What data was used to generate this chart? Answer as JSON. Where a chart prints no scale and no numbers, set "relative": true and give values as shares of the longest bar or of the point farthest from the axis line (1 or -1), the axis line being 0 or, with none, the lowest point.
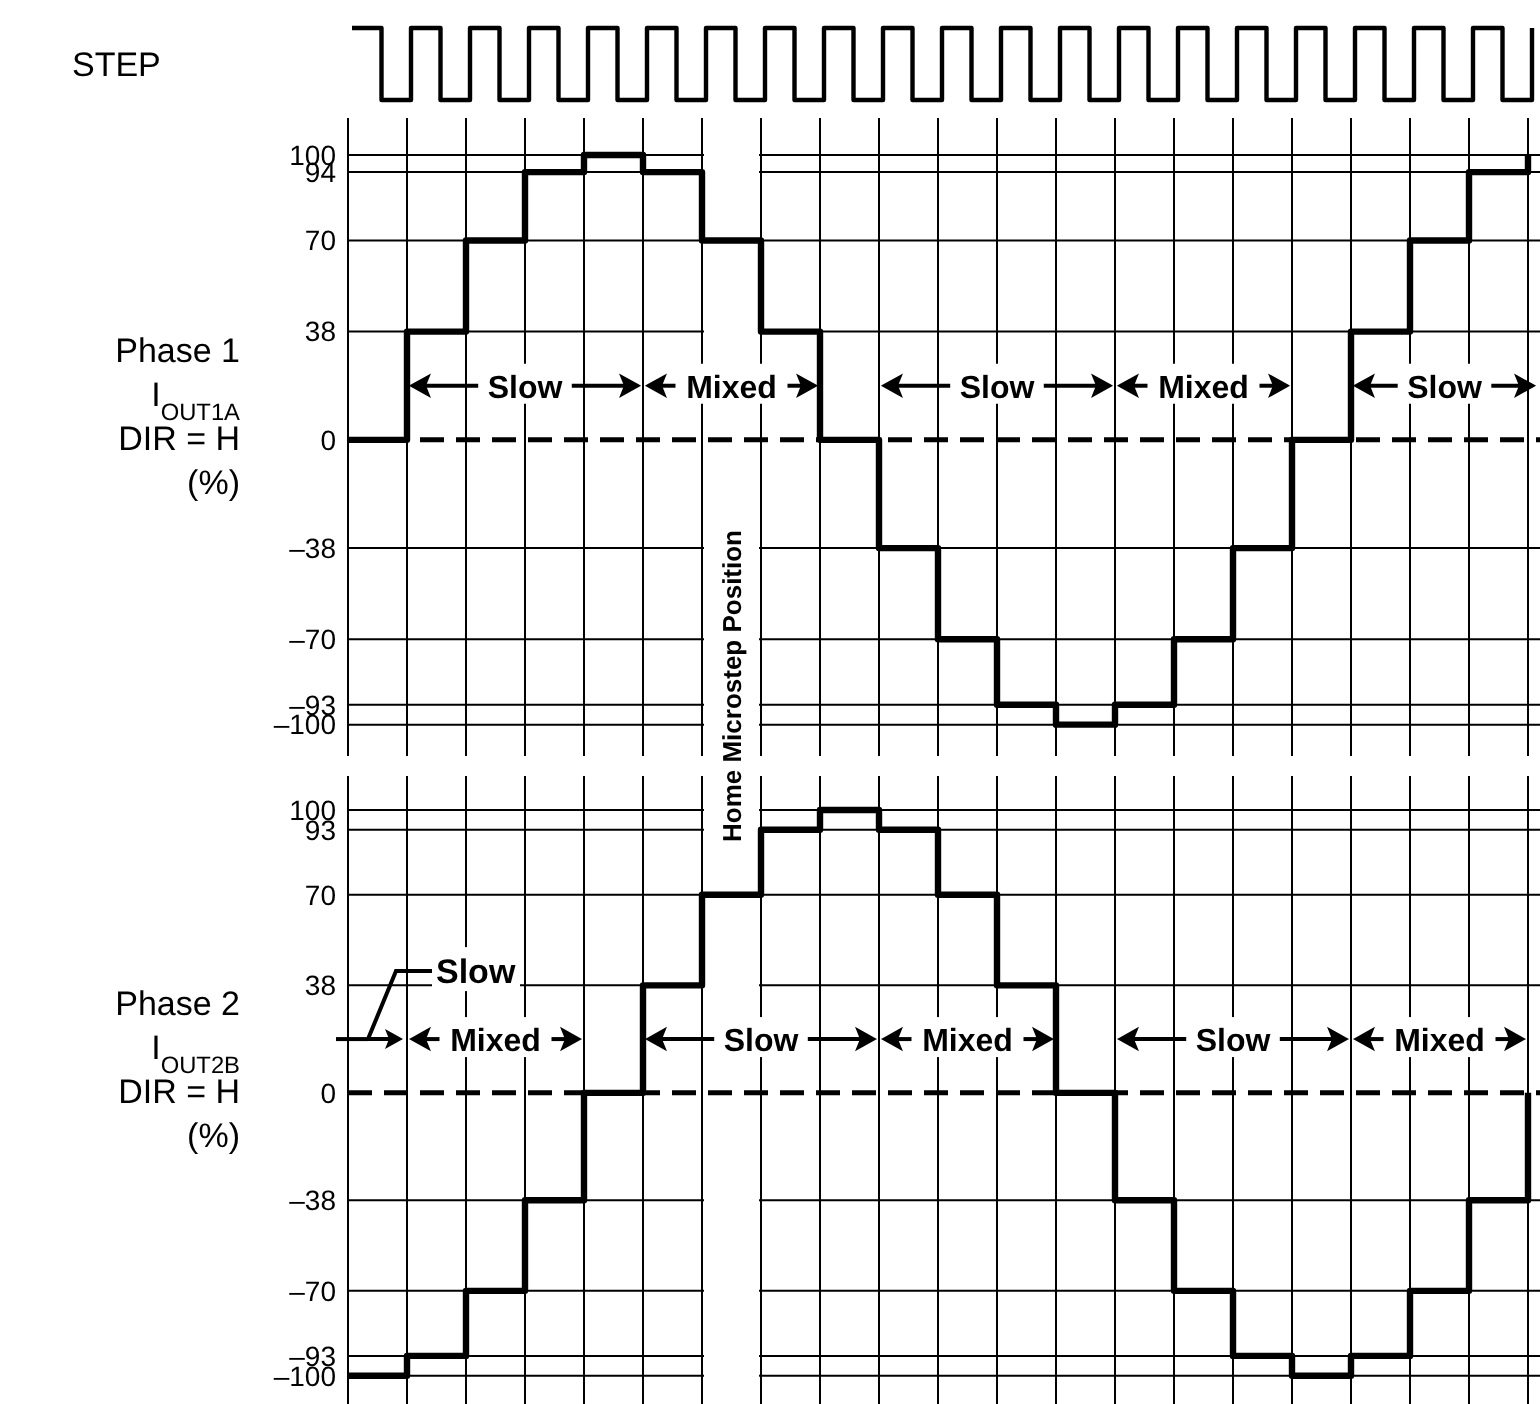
{
  "chart_data": [
    {
      "type": "step",
      "ylabel": "STEP",
      "relative": true,
      "color": "#000000",
      "categories": [
        null,
        null,
        null,
        null,
        null,
        null,
        null,
        null,
        null,
        null,
        null,
        null,
        null,
        null,
        null,
        null,
        null,
        null,
        null,
        null,
        null,
        null,
        null,
        null,
        null,
        null,
        null,
        null,
        null,
        null,
        null,
        null,
        null,
        null,
        null,
        null,
        null,
        null,
        null,
        null,
        null
      ],
      "values": [
        1,
        0,
        1,
        0,
        1,
        0,
        1,
        0,
        1,
        0,
        1,
        0,
        1,
        0,
        1,
        0,
        1,
        0,
        1,
        0,
        1,
        0,
        1,
        0,
        1,
        0,
        1,
        0,
        1,
        0,
        1,
        0,
        1,
        0,
        1,
        0,
        1,
        0,
        1,
        0,
        1
      ]
    },
    {
      "type": "step",
      "ylabel": "Phase 1\nI$_{OUT1A}$\nDIR = H\n(%)",
      "color": "#000000",
      "categories": [
        null,
        null,
        null,
        null,
        null,
        null,
        null,
        null,
        null,
        null,
        null,
        null,
        null,
        null,
        null,
        null,
        null,
        null,
        null,
        null,
        null
      ],
      "values": [
        0,
        38,
        70,
        94,
        100,
        94,
        70,
        38,
        0,
        -38,
        -70,
        -93,
        -100,
        -93,
        -70,
        -38,
        0,
        38,
        70,
        94,
        100
      ],
      "ylim": [
        -111,
        113
      ],
      "yticks": [
        100,
        94,
        70,
        38,
        0,
        {
          "value": -38,
          "label": "–38"
        },
        {
          "value": -70,
          "label": "–70"
        },
        {
          "value": -93,
          "label": "–93"
        },
        {
          "value": -100,
          "label": "–100"
        }
      ],
      "grid": true,
      "tick_labels": "y",
      "ref_lines": [
        {
          "axis": "y",
          "value": 0,
          "color": "#000000",
          "line_style": "dashed"
        }
      ],
      "annotations": [
        "Slow",
        "Mixed",
        "Slow",
        "Mixed",
        "Slow",
        "Home Microstep Position"
      ]
    },
    {
      "type": "step",
      "ylabel": "Phase 2\nI$_{OUT2B}$\nDIR = H\n(%)",
      "color": "#000000",
      "categories": [
        null,
        null,
        null,
        null,
        null,
        null,
        null,
        null,
        null,
        null,
        null,
        null,
        null,
        null,
        null,
        null,
        null,
        null,
        null,
        null,
        null
      ],
      "values": [
        -100,
        -93,
        -70,
        -38,
        0,
        38,
        70,
        93,
        100,
        93,
        70,
        38,
        0,
        -38,
        -70,
        -93,
        -100,
        -93,
        -70,
        -38,
        0
      ],
      "ylim": [
        -110,
        112
      ],
      "yticks": [
        100,
        93,
        70,
        38,
        0,
        {
          "value": -38,
          "label": "–38"
        },
        {
          "value": -70,
          "label": "–70"
        },
        {
          "value": -93,
          "label": "–93"
        },
        {
          "value": -100,
          "label": "–100"
        }
      ],
      "grid": true,
      "tick_labels": "y",
      "ref_lines": [
        {
          "axis": "y",
          "value": 0,
          "color": "#000000",
          "line_style": "dashed"
        }
      ],
      "annotations": [
        "Slow",
        "Mixed",
        "Slow",
        "Mixed",
        "Slow",
        "Mixed"
      ]
    }
  ]
}
